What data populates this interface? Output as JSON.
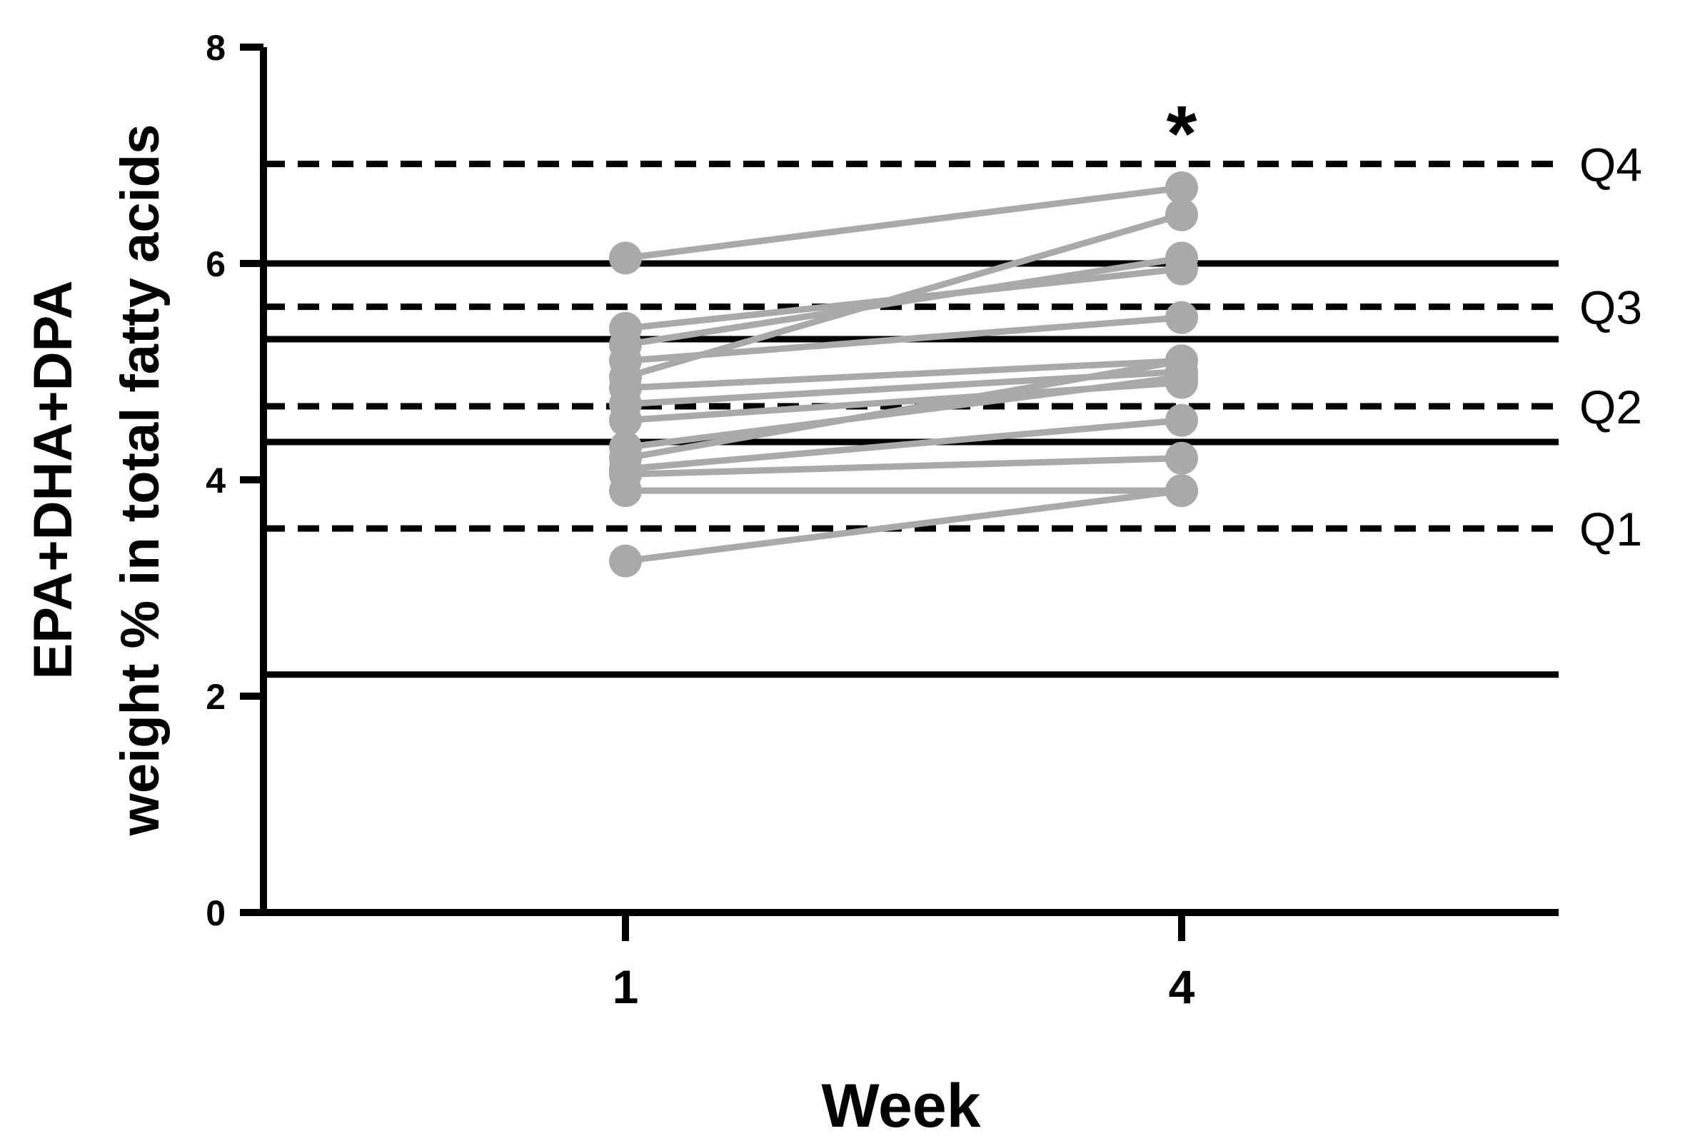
{
  "chart_data": {
    "type": "line",
    "xlabel": "Week",
    "ylabel_lines": [
      "EPA+DHA+DPA",
      "weight % in total fatty acids"
    ],
    "ylim": [
      0,
      8
    ],
    "yticks": [
      "0",
      "2",
      "4",
      "6",
      "8"
    ],
    "categories": [
      "1",
      "4"
    ],
    "grid": false,
    "annotation": "*",
    "colors": {
      "series": "#a9a9a9",
      "reference": "#000000"
    },
    "reference_lines_solid": [
      2.2,
      4.35,
      5.3,
      6.0
    ],
    "reference_lines_dashed": [
      {
        "y": 3.55,
        "label": "Q1"
      },
      {
        "y": 4.68,
        "label": "Q2"
      },
      {
        "y": 5.6,
        "label": "Q3"
      },
      {
        "y": 6.92,
        "label": "Q4"
      }
    ],
    "series": [
      {
        "values": [
          6.05,
          6.7
        ]
      },
      {
        "values": [
          5.4,
          5.95
        ]
      },
      {
        "values": [
          5.25,
          6.05
        ]
      },
      {
        "values": [
          5.1,
          5.5
        ]
      },
      {
        "values": [
          4.95,
          6.45
        ]
      },
      {
        "values": [
          4.85,
          5.1
        ]
      },
      {
        "values": [
          4.7,
          5.0
        ]
      },
      {
        "values": [
          4.55,
          4.9
        ]
      },
      {
        "values": [
          4.3,
          4.95
        ]
      },
      {
        "values": [
          4.2,
          5.1
        ]
      },
      {
        "values": [
          4.1,
          4.55
        ]
      },
      {
        "values": [
          4.05,
          4.2
        ]
      },
      {
        "values": [
          3.9,
          3.9
        ]
      },
      {
        "values": [
          3.25,
          3.9
        ]
      }
    ]
  }
}
